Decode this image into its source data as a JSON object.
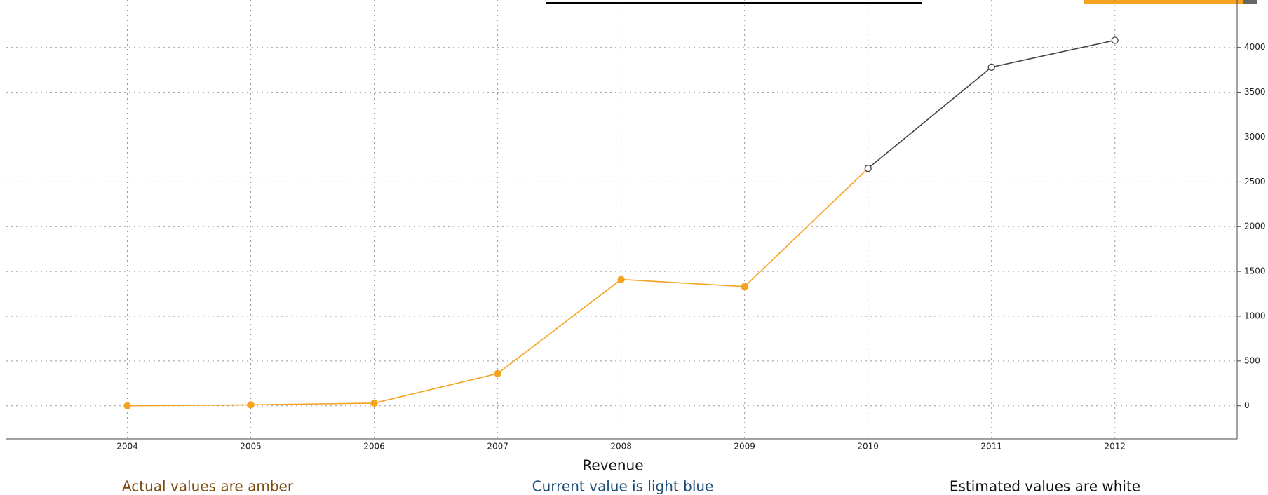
{
  "chart_data": {
    "type": "line",
    "x_label": "Revenue",
    "x": [
      2004,
      2005,
      2006,
      2007,
      2008,
      2009,
      2010,
      2011,
      2012
    ],
    "series": [
      {
        "name": "Actual",
        "color": "#f5a21e",
        "values": [
          0,
          10,
          30,
          360,
          1410,
          1330,
          2650,
          null,
          null
        ]
      },
      {
        "name": "Estimated",
        "color": "#444444",
        "values": [
          null,
          null,
          null,
          null,
          null,
          null,
          2650,
          3780,
          4080
        ]
      }
    ],
    "xlim": [
      2003.02,
      2012.99
    ],
    "xticks": [
      2004,
      2005,
      2006,
      2007,
      2008,
      2009,
      2010,
      2011,
      2012
    ],
    "ylim": [
      -370,
      4530
    ],
    "yticks": [
      0,
      500,
      1000,
      1500,
      2000,
      2500,
      3000,
      3500,
      4000
    ],
    "grid": true,
    "notes": [
      "Actual values are amber",
      "Current value is light blue",
      "Estimated values are white"
    ]
  }
}
